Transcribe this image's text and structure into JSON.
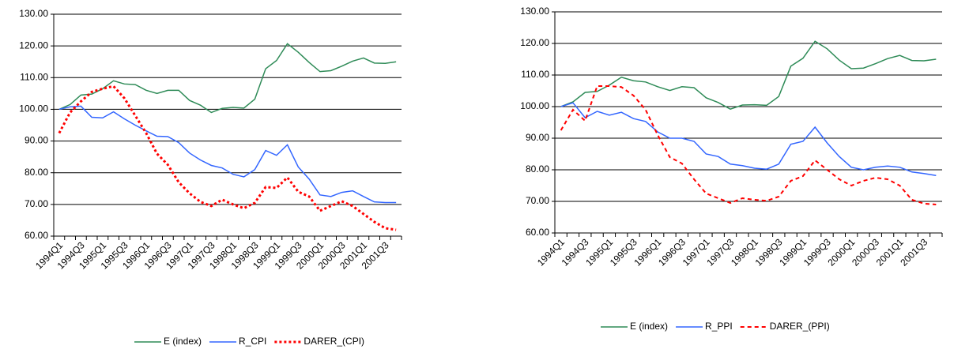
{
  "chart_data": [
    {
      "type": "line",
      "categories": [
        "1994Q1",
        null,
        "1994Q3",
        null,
        "1995Q1",
        null,
        "1995Q3",
        null,
        "1996Q1",
        null,
        "1996Q3",
        null,
        "1997Q1",
        null,
        "1997Q3",
        null,
        "1998Q1",
        null,
        "1998Q3",
        null,
        "1999Q1",
        null,
        "1999Q3",
        null,
        "2000Q1",
        null,
        "2000Q3",
        null,
        "2001Q1",
        null,
        "2001Q3",
        null
      ],
      "series": [
        {
          "name": "E (index)",
          "color": "#2e8b57",
          "line_style": "solid",
          "values": [
            100,
            101.5,
            104.5,
            104.8,
            106.5,
            109,
            108,
            107.8,
            106,
            105,
            106,
            106,
            102.8,
            101.3,
            99,
            100.3,
            100.6,
            100.4,
            103.2,
            112.8,
            115.4,
            120.7,
            118,
            114.8,
            111.9,
            112.2,
            113.6,
            115.2,
            116.2,
            114.6,
            114.5,
            115
          ]
        },
        {
          "name": "R_CPI",
          "color": "#3366ff",
          "line_style": "solid",
          "values": [
            100,
            100.8,
            101,
            97.5,
            97.3,
            99.2,
            97,
            95,
            93.2,
            91.5,
            91.4,
            89.5,
            86.2,
            84,
            82.3,
            81.5,
            79.5,
            78.7,
            81,
            87,
            85.5,
            88.8,
            81.8,
            78,
            73,
            72.5,
            73.8,
            74.3,
            72.5,
            70.8,
            70.6,
            70.6
          ]
        },
        {
          "name": "DARER_(CPI)",
          "color": "#ff0000",
          "line_style": "dotted",
          "values": [
            92.5,
            99,
            102.5,
            105.5,
            106.5,
            107.3,
            103.5,
            98,
            92.5,
            86,
            82.5,
            77,
            73.5,
            70.8,
            69.5,
            71.5,
            70,
            68.8,
            70.5,
            75.5,
            75.2,
            78.5,
            74,
            72.5,
            68,
            69.5,
            71,
            69.5,
            67,
            64.5,
            62.5,
            62
          ]
        }
      ],
      "ylim": [
        60,
        130
      ],
      "yticks": [
        {
          "value": 60,
          "label": "60.00"
        },
        {
          "value": 70,
          "label": "70.00"
        },
        {
          "value": 80,
          "label": "80.00"
        },
        {
          "value": 90,
          "label": "90.00"
        },
        {
          "value": 100,
          "label": "100.00"
        },
        {
          "value": 110,
          "label": "110.00"
        },
        {
          "value": 120,
          "label": "120.00"
        },
        {
          "value": 130,
          "label": "130.00"
        }
      ],
      "grid": true,
      "legend": "bottom"
    },
    {
      "type": "line",
      "categories": [
        "1994Q1",
        null,
        "1994Q3",
        null,
        "1995Q1",
        null,
        "1995Q3",
        null,
        "1996Q1",
        null,
        "1996Q3",
        null,
        "1997Q1",
        null,
        "1997Q3",
        null,
        "1998Q1",
        null,
        "1998Q3",
        null,
        "1999Q1",
        null,
        "1999Q3",
        null,
        "2000Q1",
        null,
        "2000Q3",
        null,
        "2001Q1",
        null,
        "2001Q3",
        null
      ],
      "series": [
        {
          "name": "E (index)",
          "color": "#2e8b57",
          "line_style": "solid",
          "values": [
            100,
            101.5,
            104.5,
            104.8,
            106.8,
            109.3,
            108.2,
            107.8,
            106.3,
            105.1,
            106.3,
            106,
            102.8,
            101.3,
            99.2,
            100.5,
            100.6,
            100.4,
            103.2,
            112.8,
            115.3,
            120.7,
            118.3,
            114.7,
            112,
            112.2,
            113.6,
            115.2,
            116.2,
            114.6,
            114.5,
            115
          ]
        },
        {
          "name": "R_PPI",
          "color": "#3366ff",
          "line_style": "solid",
          "values": [
            100,
            101.2,
            96.5,
            98.5,
            97.3,
            98.2,
            96.2,
            95.3,
            92,
            90,
            90,
            89,
            85,
            84.2,
            81.8,
            81.3,
            80.5,
            80.2,
            81.8,
            88.1,
            89,
            93.5,
            88.5,
            84.2,
            80.8,
            80,
            80.8,
            81.2,
            80.8,
            79.3,
            78.8,
            78.2
          ]
        },
        {
          "name": "DARER_(PPI)",
          "color": "#ff0000",
          "line_style": "dashed",
          "values": [
            92.5,
            99,
            95.5,
            106.5,
            106.5,
            106.2,
            103.5,
            99,
            91,
            84,
            82,
            77,
            72.5,
            71,
            69.5,
            71,
            70.5,
            70.2,
            71.5,
            76.5,
            78,
            83,
            80,
            77,
            75,
            76.5,
            77.5,
            77,
            75,
            70.5,
            69.3,
            69
          ]
        }
      ],
      "ylim": [
        60,
        130
      ],
      "yticks": [
        {
          "value": 60,
          "label": "60.00"
        },
        {
          "value": 70,
          "label": "70.00"
        },
        {
          "value": 80,
          "label": "80.00"
        },
        {
          "value": 90,
          "label": "90.00"
        },
        {
          "value": 100,
          "label": "100.00"
        },
        {
          "value": 110,
          "label": "110.00"
        },
        {
          "value": 120,
          "label": "120.00"
        },
        {
          "value": 130,
          "label": "130.00"
        }
      ],
      "grid": true,
      "legend": "bottom"
    }
  ]
}
